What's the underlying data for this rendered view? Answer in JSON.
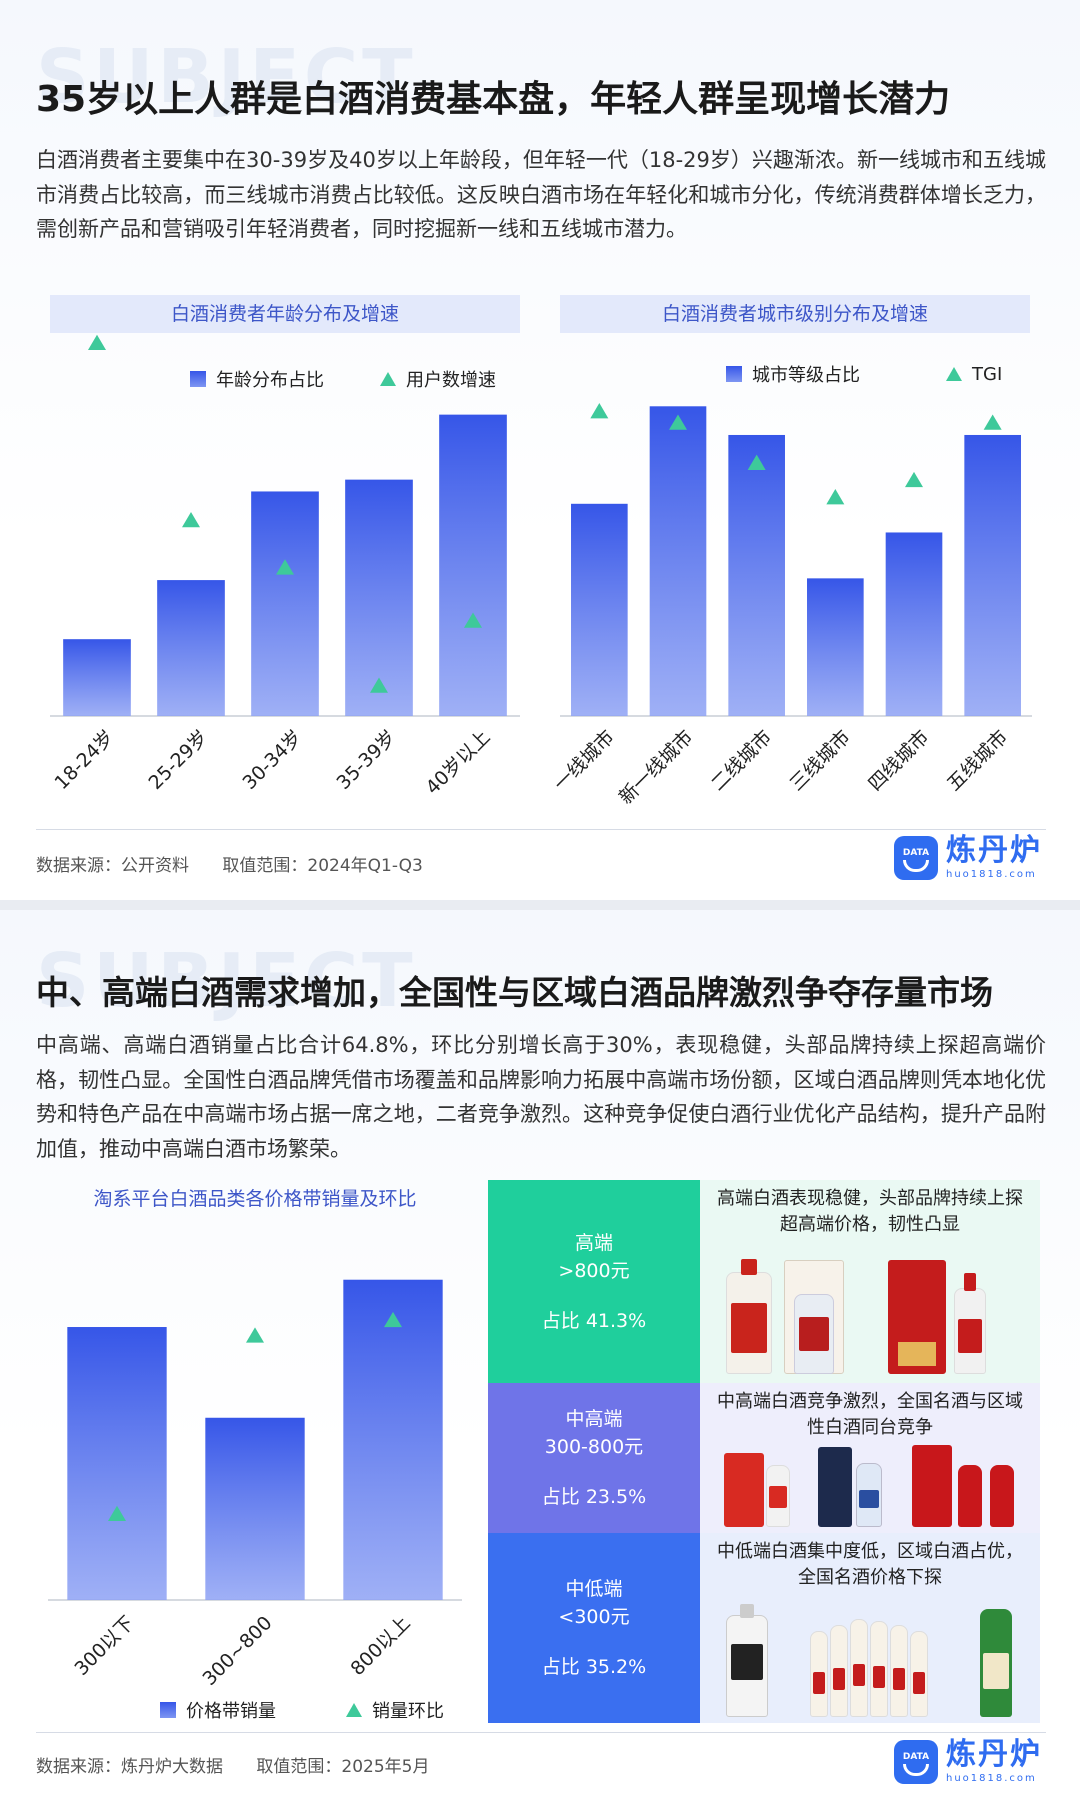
{
  "section1": {
    "watermark": "SUBJECT",
    "title": "35岁以上人群是白酒消费基本盘，年轻人群呈现增长潜力",
    "paragraph": "白酒消费者主要集中在30-39岁及40岁以上年龄段，但年轻一代（18-29岁）兴趣渐浓。新一线城市和五线城市消费占比较高，而三线城市消费占比较低。这反映白酒市场在年轻化和城市分化，传统消费群体增长乏力，需创新产品和营销吸引年轻消费者，同时挖掘新一线和五线城市潜力。",
    "age_chart_title": "白酒消费者年龄分布及增速",
    "city_chart_title": "白酒消费者城市级别分布及增速",
    "footer": {
      "source": "数据来源：公开资料",
      "range": "取值范围：2024年Q1-Q3"
    }
  },
  "section2": {
    "watermark": "SUBJECT",
    "title": "中、高端白酒需求增加，全国性与区域白酒品牌激烈争夺存量市场",
    "paragraph": "中高端、高端白酒销量占比合计64.8%，环比分别增长高于30%，表现稳健，头部品牌持续上探超高端价格，韧性凸显。全国性白酒品牌凭借市场覆盖和品牌影响力拓展中高端市场份额，区域白酒品牌则凭本地化优势和特色产品在中高端市场占据一席之地，二者竞争激烈。这种竞争促使白酒行业优化产品结构，提升产品附加值，推动中高端白酒市场繁荣。",
    "price_chart_title": "淘系平台白酒品类各价格带销量及环比",
    "tiers": [
      {
        "name": "高端",
        "range": ">800元",
        "share": "占比  41.3%",
        "color": "#1fcf9c",
        "desc": "高端白酒表现稳健，头部品牌持续上探超高端价格，韧性凸显"
      },
      {
        "name": "中高端",
        "range": "300-800元",
        "share": "占比  23.5%",
        "color": "#6f74e8",
        "desc": "中高端白酒竞争激烈，全国名酒与区域性白酒同台竞争"
      },
      {
        "name": "中低端",
        "range": "<300元",
        "share": "占比  35.2%",
        "color": "#3a6ff0",
        "desc": "中低端白酒集中度低，区域白酒占优，全国名酒价格下探"
      }
    ],
    "footer": {
      "source": "数据来源：炼丹炉大数据",
      "range": "取值范围：2025年5月"
    }
  },
  "logo": {
    "name": "炼丹炉",
    "url": "huo1818.com",
    "badge": "DATA"
  },
  "colors": {
    "bar_top": "#3656e8",
    "bar_bottom": "#8ea2f4",
    "marker": "#3ec99a",
    "accent": "#3d56c8"
  },
  "chart_data": [
    {
      "type": "bar",
      "title": "白酒消费者年龄分布及增速",
      "categories": [
        "18-24岁",
        "25-29岁",
        "30-34岁",
        "35-39岁",
        "40岁以上"
      ],
      "series": [
        {
          "name": "年龄分布占比",
          "kind": "bar",
          "values": [
            13,
            23,
            38,
            40,
            51
          ]
        },
        {
          "name": "用户数增速",
          "kind": "marker",
          "values": [
            63,
            33,
            25,
            5,
            16
          ]
        }
      ],
      "axis": "none",
      "legend": "top",
      "grid": false
    },
    {
      "type": "bar",
      "title": "白酒消费者城市级别分布及增速",
      "categories": [
        "一线城市",
        "新一线城市",
        "二线城市",
        "三线城市",
        "四线城市",
        "五线城市"
      ],
      "series": [
        {
          "name": "城市等级占比",
          "kind": "bar",
          "values": [
            37,
            54,
            49,
            24,
            32,
            49
          ]
        },
        {
          "name": "TGI",
          "kind": "marker",
          "values": [
            53,
            51,
            44,
            38,
            41,
            51
          ]
        }
      ],
      "axis": "none",
      "legend": "top",
      "grid": false
    },
    {
      "type": "bar",
      "title": "淘系平台白酒品类各价格带销量及环比",
      "categories": [
        "300以下",
        "300~800",
        "800以上"
      ],
      "series": [
        {
          "name": "价格带销量",
          "kind": "bar",
          "values": [
            35.2,
            23.5,
            41.3
          ]
        },
        {
          "name": "销量环比",
          "kind": "marker",
          "values": [
            11,
            34,
            36
          ]
        }
      ],
      "axis": "none",
      "legend": "bottom",
      "grid": false
    }
  ]
}
